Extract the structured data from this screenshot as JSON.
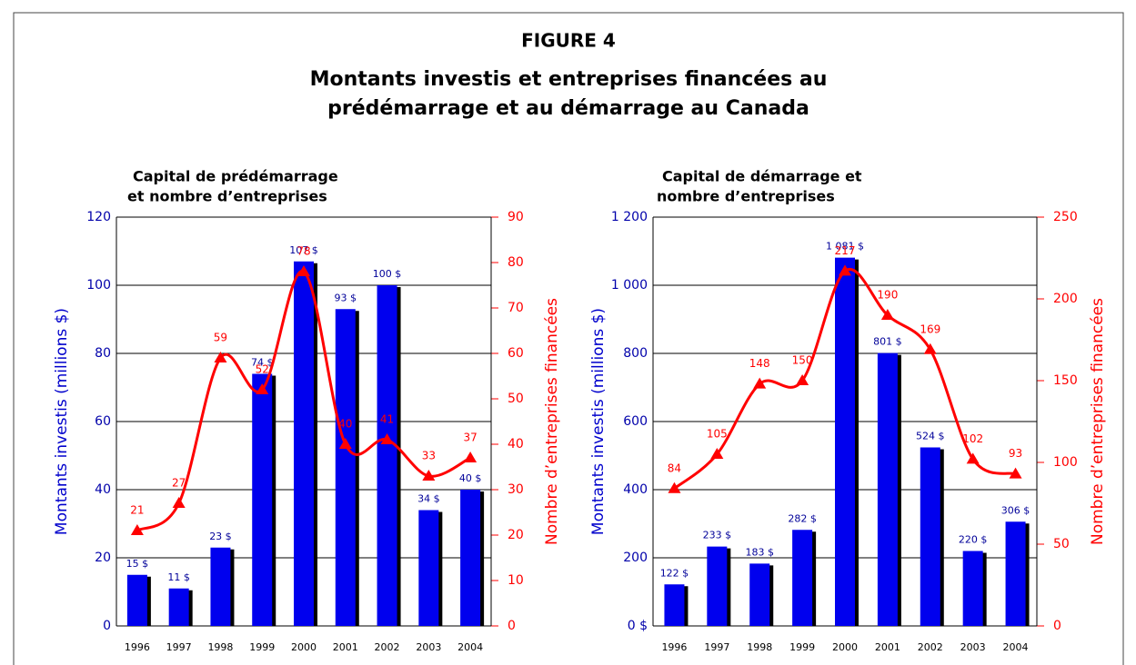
{
  "figure_label": "FIGURE 4",
  "title_lines": [
    "Montants investis et entreprises financées au",
    "prédémarrage et au démarrage au Canada"
  ],
  "chart_data": [
    {
      "type": "combo",
      "title_lines": [
        "Capital de prédémarrage",
        "et nombre d’entreprises"
      ],
      "y_label": "Montants investis (millions $)",
      "y2_label": "Nombre d’entreprises financées",
      "categories": [
        "1996",
        "1997",
        "1998",
        "1999",
        "2000",
        "2001",
        "2002",
        "2003",
        "2004"
      ],
      "series": [
        {
          "type": "bar",
          "color": "#0000ee",
          "values": [
            15,
            11,
            23,
            74,
            107,
            93,
            100,
            34,
            40
          ],
          "value_labels": [
            "15 $",
            "11 $",
            "23 $",
            "74 $",
            "107 $",
            "93 $",
            "100 $",
            "34 $",
            "40 $"
          ]
        },
        {
          "type": "line",
          "axis": "y2",
          "color": "#ff0000",
          "values": [
            21,
            27,
            59,
            52,
            78,
            40,
            41,
            33,
            37
          ]
        }
      ],
      "ylim": [
        0,
        120
      ],
      "yticks": [
        0,
        20,
        40,
        60,
        80,
        100,
        120
      ],
      "y2lim": [
        0,
        90
      ],
      "y2ticks": [
        0,
        10,
        20,
        30,
        40,
        50,
        60,
        70,
        80,
        90
      ],
      "grid": true
    },
    {
      "type": "combo",
      "title_lines": [
        "Capital de démarrage et",
        "nombre d’entreprises"
      ],
      "y_label": "Montants investis (millions $)",
      "y2_label": "Nombre d’entreprises financées",
      "categories": [
        "1996",
        "1997",
        "1998",
        "1999",
        "2000",
        "2001",
        "2002",
        "2003",
        "2004"
      ],
      "series": [
        {
          "type": "bar",
          "color": "#0000ee",
          "values": [
            122,
            233,
            183,
            282,
            1081,
            801,
            524,
            220,
            306
          ],
          "value_labels": [
            "122 $",
            "233 $",
            "183 $",
            "282 $",
            "1 081 $",
            "801 $",
            "524 $",
            "220 $",
            "306 $"
          ]
        },
        {
          "type": "line",
          "axis": "y2",
          "color": "#ff0000",
          "values": [
            84,
            105,
            148,
            150,
            217,
            190,
            169,
            102,
            93
          ]
        }
      ],
      "ylim": [
        0,
        1200
      ],
      "yticks": [
        {
          "value": 0,
          "label": "0 $"
        },
        200,
        400,
        600,
        800,
        {
          "value": 1000,
          "label": "1 000"
        },
        {
          "value": 1200,
          "label": "1 200"
        }
      ],
      "y2lim": [
        0,
        250
      ],
      "y2ticks": [
        0,
        50,
        100,
        150,
        200,
        250
      ],
      "grid": true
    }
  ]
}
